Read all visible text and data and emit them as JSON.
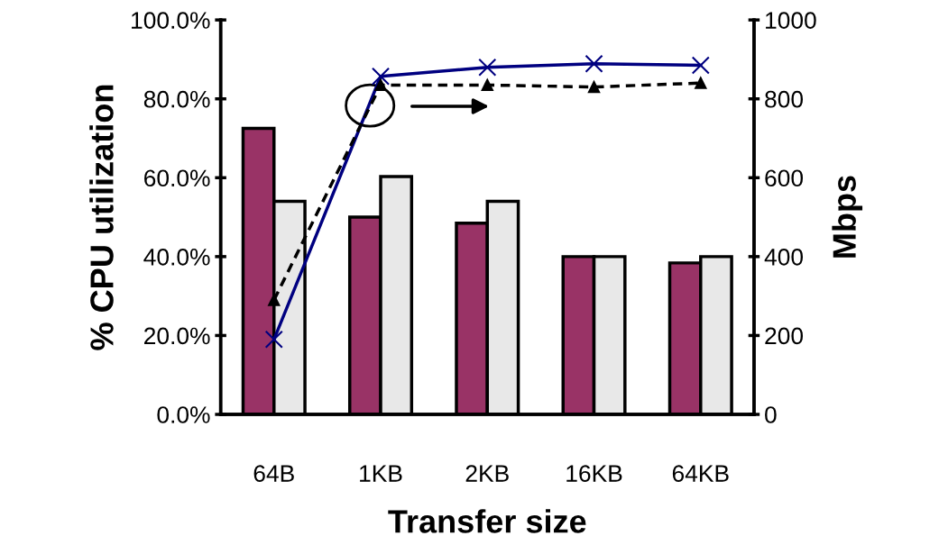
{
  "chart_data": {
    "type": "bar",
    "xlabel": "Transfer size",
    "ylabel": "% CPU utilization",
    "y2label": "Mbps",
    "categories": [
      "64B",
      "1KB",
      "2KB",
      "16KB",
      "64KB"
    ],
    "series": [
      {
        "color": "#993366",
        "values": [
          72.5,
          50,
          48.5,
          40,
          38.4
        ]
      },
      {
        "color": "#e8e8e8",
        "values": [
          54,
          60.3,
          54,
          40,
          40
        ]
      },
      {
        "type": "line",
        "axis": "y2",
        "color": "#000080",
        "marker": "cross",
        "line_style": "solid",
        "values": [
          190,
          857,
          880,
          889,
          885
        ]
      },
      {
        "type": "line",
        "axis": "y2",
        "color": "#000000",
        "marker": "triangle",
        "line_style": "dashed",
        "values": [
          290,
          835,
          835,
          830,
          840
        ]
      }
    ],
    "ylim": [
      0,
      100
    ],
    "yticks": [
      {
        "value": 0,
        "label": "0.0%"
      },
      {
        "value": 20,
        "label": "20.0%"
      },
      {
        "value": 40,
        "label": "40.0%"
      },
      {
        "value": 60,
        "label": "60.0%"
      },
      {
        "value": 80,
        "label": "80.0%"
      },
      {
        "value": 100,
        "label": "100.0%"
      }
    ],
    "y2lim": [
      0,
      1000
    ],
    "y2ticks": [
      0,
      200,
      400,
      600,
      800,
      1000
    ],
    "grid": false
  }
}
